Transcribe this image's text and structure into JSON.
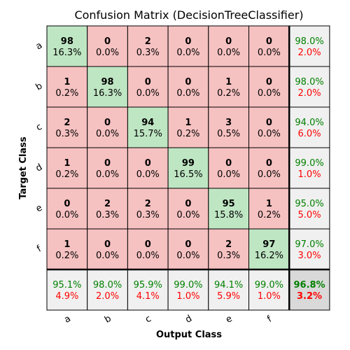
{
  "chart_data": {
    "type": "heatmap",
    "title": "Confusion Matrix (DecisionTreeClassifier)",
    "xlabel": "Output Class",
    "ylabel": "Target Class",
    "classes": [
      "a",
      "b",
      "c",
      "d",
      "e",
      "f"
    ],
    "counts": [
      [
        98,
        0,
        2,
        0,
        0,
        0
      ],
      [
        1,
        98,
        0,
        0,
        1,
        0
      ],
      [
        2,
        0,
        94,
        1,
        3,
        0
      ],
      [
        1,
        0,
        0,
        99,
        0,
        0
      ],
      [
        0,
        2,
        2,
        0,
        95,
        1
      ],
      [
        1,
        0,
        0,
        0,
        2,
        97
      ]
    ],
    "percentages": [
      [
        "16.3%",
        "0.0%",
        "0.3%",
        "0.0%",
        "0.0%",
        "0.0%"
      ],
      [
        "0.2%",
        "16.3%",
        "0.0%",
        "0.0%",
        "0.2%",
        "0.0%"
      ],
      [
        "0.3%",
        "0.0%",
        "15.7%",
        "0.2%",
        "0.5%",
        "0.0%"
      ],
      [
        "0.2%",
        "0.0%",
        "0.0%",
        "16.5%",
        "0.0%",
        "0.0%"
      ],
      [
        "0.0%",
        "0.3%",
        "0.3%",
        "0.0%",
        "15.8%",
        "0.2%"
      ],
      [
        "0.2%",
        "0.0%",
        "0.0%",
        "0.0%",
        "0.3%",
        "16.2%"
      ]
    ],
    "row_summary": [
      {
        "correct": "98.0%",
        "error": "2.0%"
      },
      {
        "correct": "98.0%",
        "error": "2.0%"
      },
      {
        "correct": "94.0%",
        "error": "6.0%"
      },
      {
        "correct": "99.0%",
        "error": "1.0%"
      },
      {
        "correct": "95.0%",
        "error": "5.0%"
      },
      {
        "correct": "97.0%",
        "error": "3.0%"
      }
    ],
    "column_summary": [
      {
        "correct": "95.1%",
        "error": "4.9%"
      },
      {
        "correct": "98.0%",
        "error": "2.0%"
      },
      {
        "correct": "95.9%",
        "error": "4.1%"
      },
      {
        "correct": "99.0%",
        "error": "1.0%"
      },
      {
        "correct": "94.1%",
        "error": "5.9%"
      },
      {
        "correct": "99.0%",
        "error": "1.0%"
      }
    ],
    "overall": {
      "correct": "96.8%",
      "error": "3.2%"
    },
    "colors": {
      "diagonal": "#bfe6c3",
      "off_diagonal": "#f6c1c1",
      "summary": "#f0f0f0",
      "overall": "#d9d9d9",
      "correct_text": "#008000",
      "error_text": "#ff0000"
    }
  }
}
